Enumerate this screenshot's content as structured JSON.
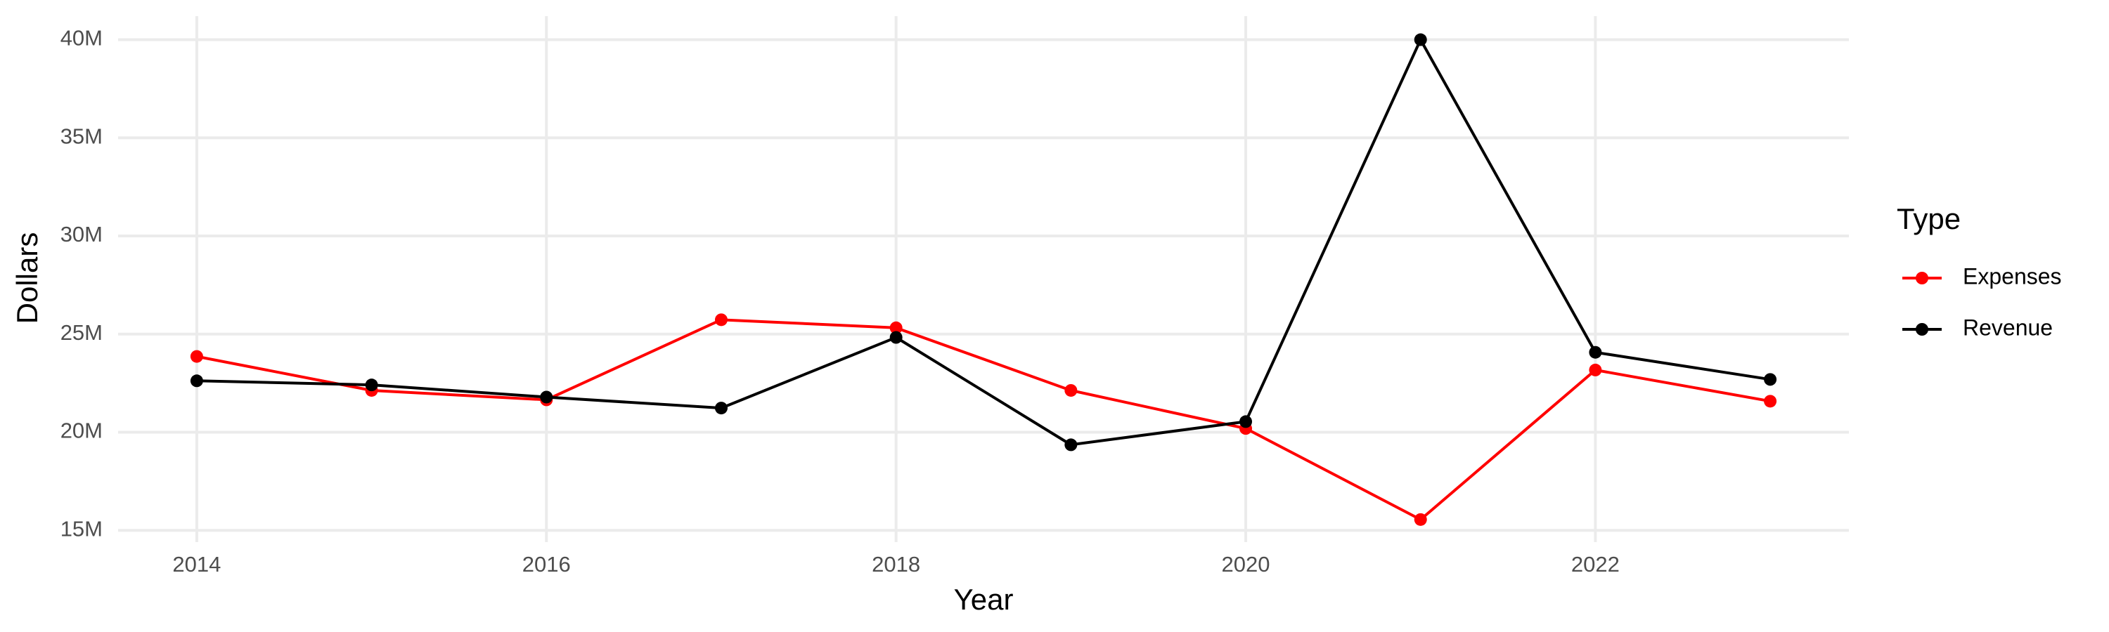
{
  "chart_data": {
    "type": "line",
    "x_label": "Year",
    "y_label": "Dollars",
    "legend_title": "Type",
    "x": [
      2014,
      2015,
      2016,
      2017,
      2018,
      2019,
      2020,
      2021,
      2022,
      2023
    ],
    "series": [
      {
        "name": "Expenses",
        "color": "#ff0000",
        "values": [
          23860000,
          22130000,
          21650000,
          25730000,
          25320000,
          22130000,
          20190000,
          15550000,
          23170000,
          21580000
        ]
      },
      {
        "name": "Revenue",
        "color": "#000000",
        "values": [
          22620000,
          22410000,
          21790000,
          21230000,
          24830000,
          19360000,
          20540000,
          40000000,
          24070000,
          22690000
        ]
      }
    ],
    "xlim": [
      2013.55,
      2023.45
    ],
    "xticks": [
      2014,
      2016,
      2018,
      2020,
      2022
    ],
    "ylim": [
      14400000,
      41200000
    ],
    "yticks": [
      {
        "value": 15000000,
        "label": "15M"
      },
      {
        "value": 20000000,
        "label": "20M"
      },
      {
        "value": 25000000,
        "label": "25M"
      },
      {
        "value": 30000000,
        "label": "30M"
      },
      {
        "value": 35000000,
        "label": "35M"
      },
      {
        "value": 40000000,
        "label": "40M"
      }
    ],
    "grid": true,
    "legend_position": "right"
  }
}
